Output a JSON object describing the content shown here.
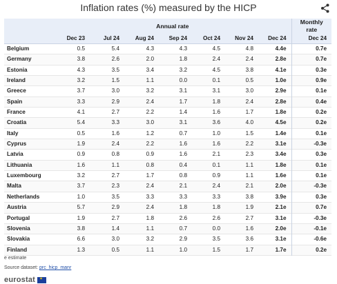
{
  "title": "Inflation rates (%) measured by the HICP",
  "header": {
    "annual_rate": "Annual rate",
    "monthly_rate_line1": "Monthly",
    "monthly_rate_line2": "rate",
    "columns": [
      "Dec 23",
      "Jul 24",
      "Aug 24",
      "Sep 24",
      "Oct 24",
      "Nov 24",
      "Dec 24",
      "Dec 24"
    ]
  },
  "rows": [
    {
      "country": "Belgium",
      "values": [
        "0.5",
        "5.4",
        "4.3",
        "4.3",
        "4.5",
        "4.8",
        "4.4e",
        "0.7e"
      ]
    },
    {
      "country": "Germany",
      "values": [
        "3.8",
        "2.6",
        "2.0",
        "1.8",
        "2.4",
        "2.4",
        "2.8e",
        "0.7e"
      ]
    },
    {
      "country": "Estonia",
      "values": [
        "4.3",
        "3.5",
        "3.4",
        "3.2",
        "4.5",
        "3.8",
        "4.1e",
        "0.3e"
      ]
    },
    {
      "country": "Ireland",
      "values": [
        "3.2",
        "1.5",
        "1.1",
        "0.0",
        "0.1",
        "0.5",
        "1.0e",
        "0.9e"
      ]
    },
    {
      "country": "Greece",
      "values": [
        "3.7",
        "3.0",
        "3.2",
        "3.1",
        "3.1",
        "3.0",
        "2.9e",
        "0.1e"
      ]
    },
    {
      "country": "Spain",
      "values": [
        "3.3",
        "2.9",
        "2.4",
        "1.7",
        "1.8",
        "2.4",
        "2.8e",
        "0.4e"
      ]
    },
    {
      "country": "France",
      "values": [
        "4.1",
        "2.7",
        "2.2",
        "1.4",
        "1.6",
        "1.7",
        "1.8e",
        "0.2e"
      ]
    },
    {
      "country": "Croatia",
      "values": [
        "5.4",
        "3.3",
        "3.0",
        "3.1",
        "3.6",
        "4.0",
        "4.5e",
        "0.2e"
      ]
    },
    {
      "country": "Italy",
      "values": [
        "0.5",
        "1.6",
        "1.2",
        "0.7",
        "1.0",
        "1.5",
        "1.4e",
        "0.1e"
      ]
    },
    {
      "country": "Cyprus",
      "values": [
        "1.9",
        "2.4",
        "2.2",
        "1.6",
        "1.6",
        "2.2",
        "3.1e",
        "-0.3e"
      ]
    },
    {
      "country": "Latvia",
      "values": [
        "0.9",
        "0.8",
        "0.9",
        "1.6",
        "2.1",
        "2.3",
        "3.4e",
        "0.3e"
      ]
    },
    {
      "country": "Lithuania",
      "values": [
        "1.6",
        "1.1",
        "0.8",
        "0.4",
        "0.1",
        "1.1",
        "1.8e",
        "0.1e"
      ]
    },
    {
      "country": "Luxembourg",
      "values": [
        "3.2",
        "2.7",
        "1.7",
        "0.8",
        "0.9",
        "1.1",
        "1.6e",
        "0.1e"
      ]
    },
    {
      "country": "Malta",
      "values": [
        "3.7",
        "2.3",
        "2.4",
        "2.1",
        "2.4",
        "2.1",
        "2.0e",
        "-0.3e"
      ]
    },
    {
      "country": "Netherlands",
      "values": [
        "1.0",
        "3.5",
        "3.3",
        "3.3",
        "3.3",
        "3.8",
        "3.9e",
        "0.3e"
      ]
    },
    {
      "country": "Austria",
      "values": [
        "5.7",
        "2.9",
        "2.4",
        "1.8",
        "1.8",
        "1.9",
        "2.1e",
        "0.7e"
      ]
    },
    {
      "country": "Portugal",
      "values": [
        "1.9",
        "2.7",
        "1.8",
        "2.6",
        "2.6",
        "2.7",
        "3.1e",
        "-0.3e"
      ]
    },
    {
      "country": "Slovenia",
      "values": [
        "3.8",
        "1.4",
        "1.1",
        "0.7",
        "0.0",
        "1.6",
        "2.0e",
        "-0.1e"
      ]
    },
    {
      "country": "Slovakia",
      "values": [
        "6.6",
        "3.0",
        "3.2",
        "2.9",
        "3.5",
        "3.6",
        "3.1e",
        "-0.6e"
      ]
    },
    {
      "country": "Finland",
      "values": [
        "1.3",
        "0.5",
        "1.1",
        "1.0",
        "1.5",
        "1.7",
        "1.7e",
        "0.2e"
      ]
    }
  ],
  "footer": {
    "note": "e estimate",
    "source_label": "Source dataset: ",
    "source_link": "prc_hicp_manr",
    "logo_text": "eurostat"
  },
  "icons": {
    "share": "share-icon",
    "flag": "eu-flag-icon"
  },
  "colors": {
    "header_bg": "#e8eef8",
    "link": "#1f4ea8"
  }
}
